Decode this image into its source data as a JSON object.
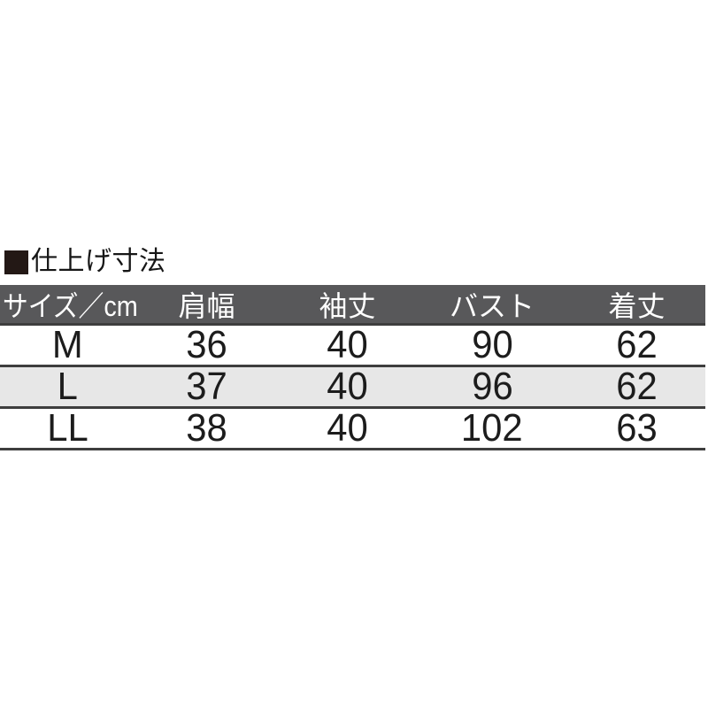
{
  "section_title": {
    "marker": "■",
    "text": "仕上げ寸法"
  },
  "size_table": {
    "columns": [
      {
        "label": "サイズ／cm"
      },
      {
        "label": "肩幅"
      },
      {
        "label": "袖丈"
      },
      {
        "label": "バスト"
      },
      {
        "label": "着丈"
      }
    ],
    "rows": [
      {
        "size": "M",
        "shoulder_width": "36",
        "sleeve_length": "40",
        "bust": "90",
        "body_length": "62"
      },
      {
        "size": "L",
        "shoulder_width": "37",
        "sleeve_length": "40",
        "bust": "96",
        "body_length": "62"
      },
      {
        "size": "LL",
        "shoulder_width": "38",
        "sleeve_length": "40",
        "bust": "102",
        "body_length": "63"
      }
    ]
  },
  "colors": {
    "header_bg": "#58585a",
    "header_text": "#ffffff",
    "zebra_row_bg": "#e7e7e7",
    "row_border": "#3e3e3e",
    "title_square": "#231815",
    "body_text": "#1c1c1c",
    "page_bg": "#ffffff"
  }
}
